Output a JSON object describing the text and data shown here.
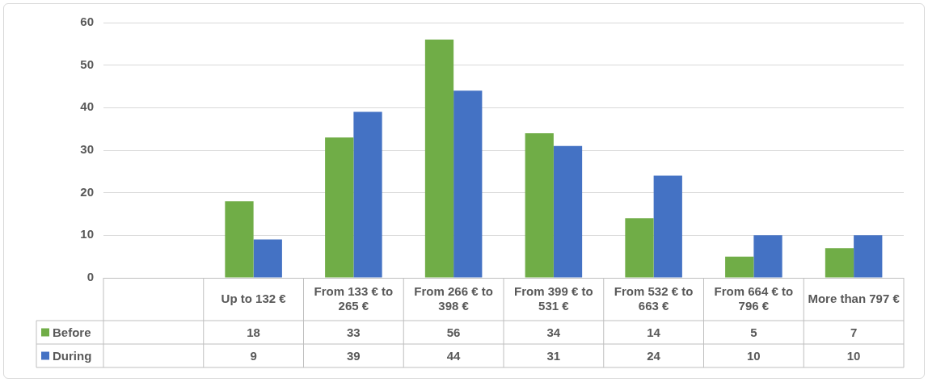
{
  "chart_data": {
    "type": "bar",
    "categories": [
      null,
      "Up to 132 €",
      "From 133 € to 265 €",
      "From 266 € to 398 €",
      "From 399 € to 531 €",
      "From 532 € to 663 €",
      "From 664 € to 796 €",
      "More than 797 €"
    ],
    "series": [
      {
        "name": "Before",
        "color": "#70ad47",
        "values": [
          null,
          18,
          33,
          56,
          34,
          14,
          5,
          7
        ]
      },
      {
        "name": "During",
        "color": "#4472c4",
        "values": [
          null,
          9,
          39,
          44,
          31,
          24,
          10,
          10
        ]
      }
    ],
    "ylim": [
      0,
      60
    ],
    "yticks": [
      0,
      10,
      20,
      30,
      40,
      50,
      60
    ],
    "grid": "y",
    "legend": "bottom",
    "data_labels": true
  }
}
